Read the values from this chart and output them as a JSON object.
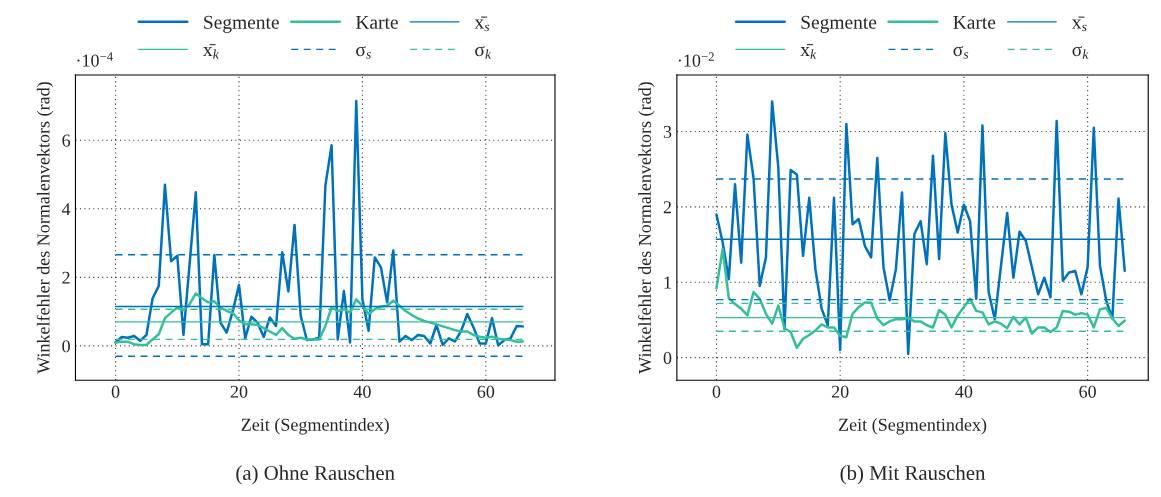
{
  "chart_data": [
    {
      "type": "line",
      "title": "(a) Ohne Rauschen",
      "xlabel": "Zeit (Segmentindex)",
      "ylabel": "Winkelfehler des Normalenvektors (rad)",
      "annotations": [
        "·10$^{−4}$"
      ],
      "x": [
        0,
        1,
        2,
        3,
        4,
        5,
        6,
        7,
        8,
        9,
        10,
        11,
        12,
        13,
        14,
        15,
        16,
        17,
        18,
        19,
        20,
        21,
        22,
        23,
        24,
        25,
        26,
        27,
        28,
        29,
        30,
        31,
        32,
        33,
        34,
        35,
        36,
        37,
        38,
        39,
        40,
        41,
        42,
        43,
        44,
        45,
        46,
        47,
        48,
        49,
        50,
        51,
        52,
        53,
        54,
        55,
        56,
        57,
        58,
        59,
        60,
        61,
        62,
        63,
        64,
        65,
        66
      ],
      "xlim": [
        -6.5,
        71.2
      ],
      "ylim": [
        -1.0,
        7.9
      ],
      "xticks": [
        0,
        20,
        40,
        60
      ],
      "yticks": [
        0,
        2,
        4,
        6
      ],
      "grid": true,
      "legend": "top",
      "series": [
        {
          "name": "Segmente",
          "color": "#0072bd",
          "values": [
            0.1,
            0.26,
            0.24,
            0.29,
            0.15,
            0.32,
            1.39,
            1.75,
            4.7,
            2.47,
            2.63,
            0.32,
            2.4,
            4.48,
            0.05,
            0.05,
            2.65,
            0.68,
            0.39,
            1.02,
            1.78,
            0.22,
            0.85,
            0.68,
            0.26,
            0.83,
            0.58,
            2.73,
            1.59,
            3.53,
            0.88,
            0.17,
            0.19,
            0.24,
            4.68,
            5.85,
            0.19,
            1.6,
            0.1,
            7.14,
            1.36,
            0.44,
            2.58,
            2.29,
            1.27,
            2.78,
            0.13,
            0.29,
            0.17,
            0.32,
            0.29,
            0.07,
            0.61,
            0.03,
            0.22,
            0.13,
            0.44,
            0.93,
            0.54,
            0.07,
            0.07,
            0.81,
            0.02,
            0.17,
            0.22,
            0.58,
            0.57
          ]
        },
        {
          "name": "Karte",
          "color": "#32bf9a",
          "values": [
            0.1,
            0.12,
            0.12,
            0.05,
            0.03,
            0.03,
            0.19,
            0.34,
            0.81,
            0.97,
            1.12,
            1.04,
            1.22,
            1.53,
            1.39,
            1.27,
            1.3,
            1.12,
            1.02,
            0.96,
            0.75,
            0.63,
            0.63,
            0.61,
            0.52,
            0.42,
            0.32,
            0.52,
            0.32,
            0.21,
            0.24,
            0.19,
            0.19,
            0.19,
            0.58,
            1.12,
            1.02,
            1.07,
            0.97,
            1.36,
            1.17,
            0.93,
            1.07,
            1.15,
            1.17,
            1.32,
            1.17,
            1.02,
            0.9,
            0.8,
            0.73,
            0.68,
            0.63,
            0.57,
            0.52,
            0.46,
            0.42,
            0.42,
            0.32,
            0.27,
            0.24,
            0.27,
            0.21,
            0.19,
            0.17,
            0.12,
            0.13
          ]
        }
      ],
      "ref_lines": [
        {
          "axis": "y",
          "value": 1.15,
          "label": "x̄$_{s}$",
          "color": "#0072bd",
          "line_style": "solid"
        },
        {
          "axis": "y",
          "value": 0.7,
          "label": "x̄$_{k}$",
          "color": "#32bf9a",
          "line_style": "solid"
        },
        {
          "axis": "y",
          "value": 2.66,
          "label": "σ$_{s}$",
          "color": "#0072bd",
          "line_style": "dashed"
        },
        {
          "axis": "y",
          "value": -0.3,
          "color": "#0072bd",
          "line_style": "dashed"
        },
        {
          "axis": "y",
          "value": 1.07,
          "label": "σ$_{k}$",
          "color": "#32bf9a",
          "line_style": "dashed"
        },
        {
          "axis": "y",
          "value": 0.19,
          "color": "#32bf9a",
          "line_style": "dashed"
        }
      ]
    },
    {
      "type": "line",
      "title": "(b) Mit Rauschen",
      "xlabel": "Zeit (Segmentindex)",
      "ylabel": "Winkelfehler des Normalenvektors (rad)",
      "annotations": [
        "·10$^{−2}$"
      ],
      "x": [
        0,
        1,
        2,
        3,
        4,
        5,
        6,
        7,
        8,
        9,
        10,
        11,
        12,
        13,
        14,
        15,
        16,
        17,
        18,
        19,
        20,
        21,
        22,
        23,
        24,
        25,
        26,
        27,
        28,
        29,
        30,
        31,
        32,
        33,
        34,
        35,
        36,
        37,
        38,
        39,
        40,
        41,
        42,
        43,
        44,
        45,
        46,
        47,
        48,
        49,
        50,
        51,
        52,
        53,
        54,
        55,
        56,
        57,
        58,
        59,
        60,
        61,
        62,
        63,
        64,
        65,
        66
      ],
      "xlim": [
        -6.4,
        69.8
      ],
      "ylim": [
        -0.3,
        3.75
      ],
      "xticks": [
        0,
        20,
        40,
        60
      ],
      "yticks": [
        0,
        1,
        2,
        3
      ],
      "grid": true,
      "legend": "top",
      "series": [
        {
          "name": "Segmente",
          "color": "#0072bd",
          "values": [
            1.9,
            1.53,
            1.04,
            2.3,
            1.26,
            2.96,
            2.38,
            0.95,
            1.33,
            3.4,
            2.52,
            0.38,
            2.49,
            2.43,
            1.35,
            2.12,
            1.17,
            0.65,
            0.43,
            2.12,
            0.1,
            3.1,
            1.77,
            1.84,
            1.48,
            1.33,
            2.65,
            1.2,
            0.76,
            1.17,
            2.19,
            0.05,
            1.64,
            1.81,
            1.24,
            2.68,
            1.31,
            2.98,
            2.03,
            1.66,
            2.03,
            1.81,
            0.78,
            3.08,
            0.87,
            0.51,
            1.22,
            1.92,
            1.06,
            1.67,
            1.55,
            1.2,
            0.84,
            1.06,
            0.8,
            3.14,
            1.02,
            1.13,
            1.15,
            0.84,
            1.2,
            3.05,
            1.22,
            0.76,
            0.52,
            2.11,
            1.15
          ]
        },
        {
          "name": "Karte",
          "color": "#32bf9a",
          "values": [
            0.92,
            1.44,
            0.79,
            0.71,
            0.65,
            0.56,
            0.87,
            0.78,
            0.58,
            0.45,
            0.69,
            0.39,
            0.34,
            0.13,
            0.25,
            0.3,
            0.36,
            0.44,
            0.4,
            0.4,
            0.29,
            0.27,
            0.58,
            0.67,
            0.73,
            0.73,
            0.52,
            0.43,
            0.48,
            0.51,
            0.51,
            0.53,
            0.48,
            0.48,
            0.43,
            0.4,
            0.63,
            0.57,
            0.4,
            0.56,
            0.67,
            0.78,
            0.62,
            0.6,
            0.44,
            0.48,
            0.45,
            0.39,
            0.54,
            0.44,
            0.53,
            0.32,
            0.4,
            0.4,
            0.34,
            0.4,
            0.62,
            0.61,
            0.57,
            0.59,
            0.57,
            0.4,
            0.64,
            0.66,
            0.52,
            0.42,
            0.49
          ]
        }
      ],
      "ref_lines": [
        {
          "axis": "y",
          "value": 1.57,
          "label": "x̄$_{s}$",
          "color": "#0072bd",
          "line_style": "solid"
        },
        {
          "axis": "y",
          "value": 0.53,
          "label": "x̄$_{k}$",
          "color": "#32bf9a",
          "line_style": "solid"
        },
        {
          "axis": "y",
          "value": 2.37,
          "label": "σ$_{s}$",
          "color": "#0072bd",
          "line_style": "dashed"
        },
        {
          "axis": "y",
          "value": 0.77,
          "color": "#0072bd",
          "line_style": "dashed"
        },
        {
          "axis": "y",
          "value": 0.72,
          "label": "σ$_{k}$",
          "color": "#32bf9a",
          "line_style": "dashed"
        },
        {
          "axis": "y",
          "value": 0.35,
          "color": "#32bf9a",
          "line_style": "dashed"
        }
      ]
    }
  ]
}
